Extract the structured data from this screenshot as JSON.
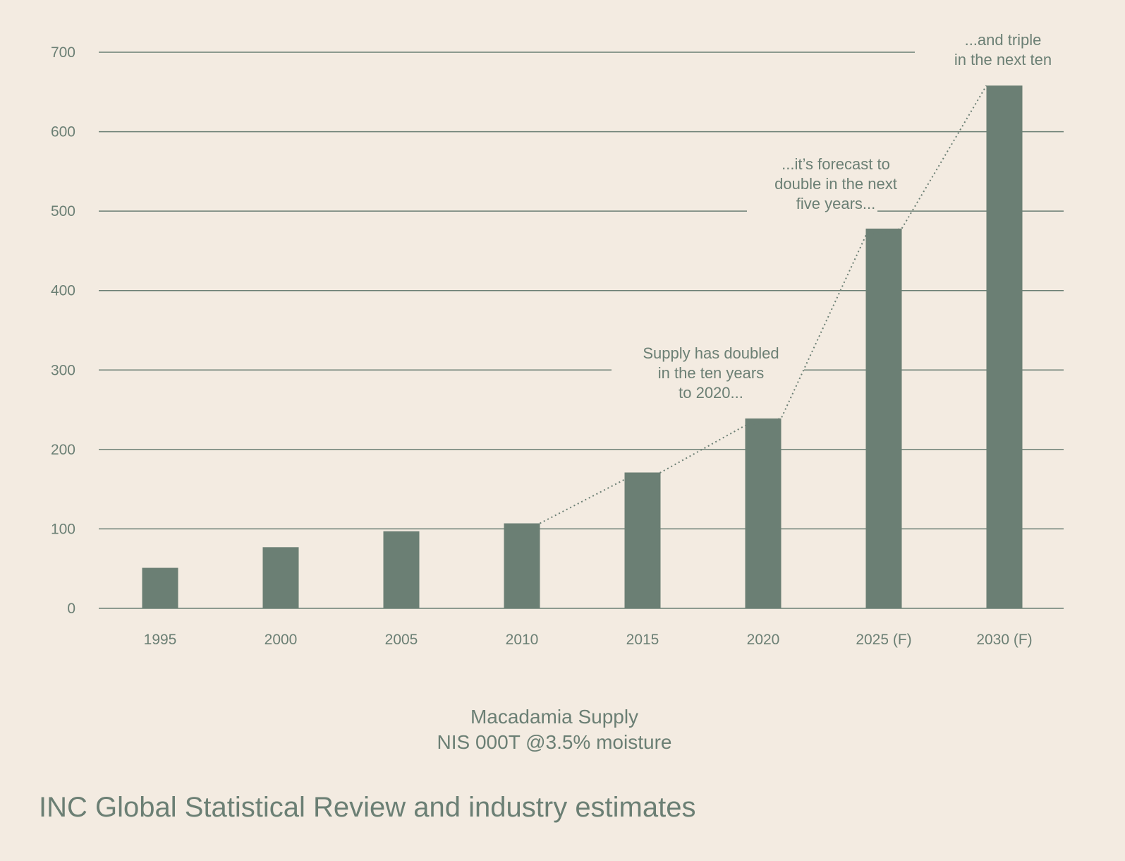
{
  "chart_data": {
    "type": "bar",
    "title": "Macadamia Supply",
    "ylabel": "NIS 000T @3.5% moisture",
    "xlabel": "",
    "categories": [
      "1995",
      "2000",
      "2005",
      "2010",
      "2015",
      "2020",
      "2025 (F)",
      "2030 (F)"
    ],
    "values": [
      51,
      77,
      97,
      107,
      171,
      239,
      478,
      658
    ],
    "ylim": [
      0,
      700
    ],
    "yticks": [
      0,
      100,
      200,
      300,
      400,
      500,
      600,
      700
    ],
    "grid": true,
    "bar_color": "#6b7f74",
    "trend_line": {
      "style": "dotted",
      "from": "2010",
      "to": "2030 (F)"
    },
    "annotations": [
      {
        "id": "doubled",
        "lines": [
          "Supply has doubled",
          "in the ten years",
          "to 2020..."
        ]
      },
      {
        "id": "forecast",
        "lines": [
          "...it’s forecast to",
          "double in the next",
          "five years..."
        ]
      },
      {
        "id": "triple",
        "lines": [
          "...and triple",
          "in the next ten"
        ]
      }
    ]
  },
  "source": "INC Global Statistical Review and industry estimates",
  "colors": {
    "background": "#f3ebe1",
    "accent": "#6b7f74"
  }
}
